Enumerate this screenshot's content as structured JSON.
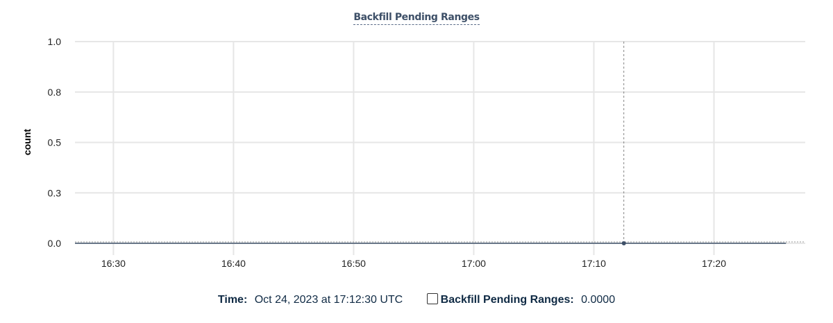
{
  "chart_data": {
    "type": "line",
    "title": "Backfill Pending Ranges",
    "ylabel": "count",
    "xlabel": "",
    "ylim": [
      0,
      1
    ],
    "yticks": [
      {
        "value": 0,
        "label": "0.0"
      },
      {
        "value": 0.25,
        "label": "0.3"
      },
      {
        "value": 0.5,
        "label": "0.5"
      },
      {
        "value": 0.75,
        "label": "0.8"
      },
      {
        "value": 1,
        "label": "1.0"
      }
    ],
    "xlim": [
      "16:26:48",
      "17:27:36"
    ],
    "xticks": [
      "16:30",
      "16:40",
      "16:50",
      "17:00",
      "17:10",
      "17:20"
    ],
    "grid": true,
    "series": [
      {
        "name": "Backfill Pending Ranges",
        "color": "#3e5068",
        "x": [
          "16:26:48",
          "17:26:00"
        ],
        "y": [
          0,
          0
        ]
      }
    ],
    "hover": {
      "x": "17:12:30",
      "y": 0
    }
  },
  "legend": {
    "time_label": "Time:",
    "time_value": "Oct 24, 2023 at 17:12:30 UTC",
    "series_label": "Backfill Pending Ranges:",
    "series_value": "0.0000"
  }
}
